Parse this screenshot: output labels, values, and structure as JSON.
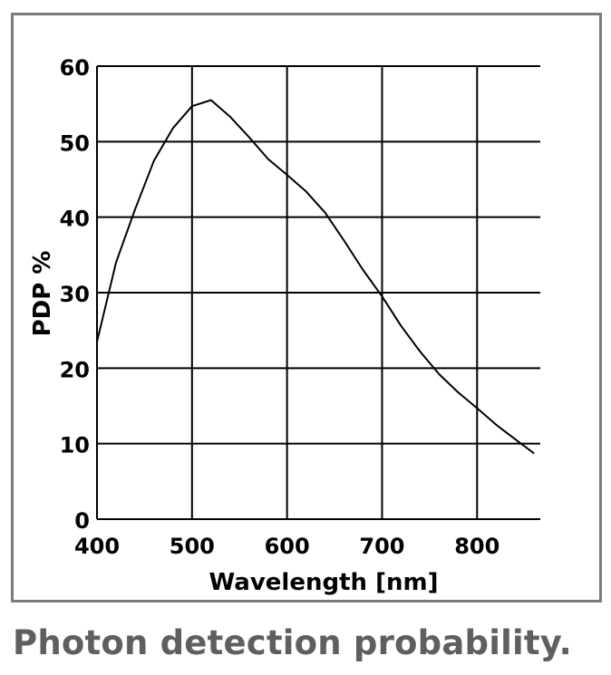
{
  "caption": "Photon detection probability.",
  "chart_data": {
    "type": "line",
    "title": "",
    "xlabel": "Wavelength [nm]",
    "ylabel": "PDP %",
    "xlim": [
      400,
      860
    ],
    "ylim": [
      0,
      60
    ],
    "x_ticks": [
      400,
      500,
      600,
      700,
      800
    ],
    "y_ticks": [
      0,
      10,
      20,
      30,
      40,
      50,
      60
    ],
    "grid": true,
    "series": [
      {
        "x": [
          400,
          420,
          440,
          460,
          480,
          500,
          520,
          540,
          560,
          580,
          600,
          620,
          640,
          660,
          680,
          700,
          720,
          740,
          760,
          780,
          800,
          820,
          840,
          860
        ],
        "y": [
          23.5,
          34,
          41,
          47.5,
          51.8,
          54.7,
          55.5,
          53.3,
          50.6,
          47.7,
          45.6,
          43.4,
          40.6,
          36.9,
          33,
          29.5,
          25.6,
          22.2,
          19.2,
          16.8,
          14.7,
          12.5,
          10.6,
          8.7
        ],
        "color": "#000000"
      }
    ]
  }
}
